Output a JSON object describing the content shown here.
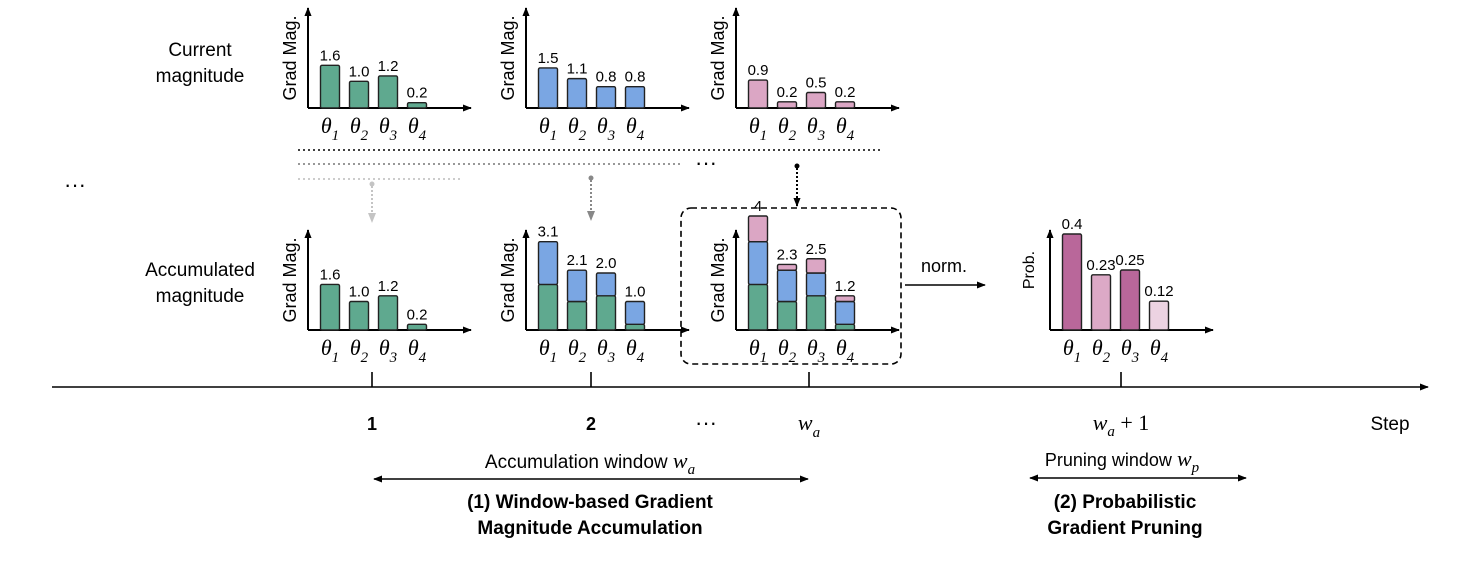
{
  "row_labels": {
    "current": [
      "Current",
      "magnitude"
    ],
    "accumulated": [
      "Accumulated",
      "magnitude"
    ]
  },
  "y_label": "Grad Mag.",
  "prob_label": "Prob.",
  "norm_label": "norm.",
  "ellipsis": "···",
  "timeline": {
    "axis_label": "Step",
    "ticks": [
      "1",
      "2",
      "···",
      "w_a",
      "w_a + 1"
    ]
  },
  "windows": {
    "accumulation": {
      "label": "Accumulation window",
      "symbol": "w_a",
      "caption": [
        "(1) Window-based Gradient",
        "Magnitude Accumulation"
      ]
    },
    "pruning": {
      "label": "Pruning window",
      "symbol": "w_p",
      "caption": [
        "(2) Probabilistic",
        "Gradient Pruning"
      ]
    }
  },
  "colors": {
    "green": "#5fa98f",
    "blue": "#7aa6e3",
    "pink": "#dba6c4",
    "prob_dark": "#b9679a",
    "prob_mid": "#dca9c6",
    "prob_light": "#ecd3e2"
  },
  "chart_data": [
    {
      "id": "current-step-1",
      "type": "bar",
      "categories": [
        "θ1",
        "θ2",
        "θ3",
        "θ4"
      ],
      "ylabel": "Grad Mag.",
      "series": [
        {
          "values": [
            1.6,
            1.0,
            1.2,
            0.2
          ]
        }
      ],
      "labels": [
        "1.6",
        "1.0",
        "1.2",
        "0.2"
      ]
    },
    {
      "id": "current-step-2",
      "type": "bar",
      "categories": [
        "θ1",
        "θ2",
        "θ3",
        "θ4"
      ],
      "ylabel": "Grad Mag.",
      "series": [
        {
          "values": [
            1.5,
            1.1,
            0.8,
            0.8
          ]
        }
      ],
      "labels": [
        "1.5",
        "1.1",
        "0.8",
        "0.8"
      ]
    },
    {
      "id": "current-step-wa",
      "type": "bar",
      "categories": [
        "θ1",
        "θ2",
        "θ3",
        "θ4"
      ],
      "ylabel": "Grad Mag.",
      "series": [
        {
          "values": [
            0.9,
            0.2,
            0.5,
            0.2
          ]
        }
      ],
      "labels": [
        "0.9",
        "0.2",
        "0.5",
        "0.2"
      ]
    },
    {
      "id": "accumulated-step-1",
      "type": "bar",
      "stacked": true,
      "categories": [
        "θ1",
        "θ2",
        "θ3",
        "θ4"
      ],
      "ylabel": "Grad Mag.",
      "series": [
        {
          "values": [
            1.6,
            1.0,
            1.2,
            0.2
          ]
        }
      ],
      "labels": [
        "1.6",
        "1.0",
        "1.2",
        "0.2"
      ]
    },
    {
      "id": "accumulated-step-2",
      "type": "bar",
      "stacked": true,
      "categories": [
        "θ1",
        "θ2",
        "θ3",
        "θ4"
      ],
      "ylabel": "Grad Mag.",
      "series": [
        {
          "values": [
            1.6,
            1.0,
            1.2,
            0.2
          ]
        },
        {
          "values": [
            1.5,
            1.1,
            0.8,
            0.8
          ]
        }
      ],
      "labels": [
        "3.1",
        "2.1",
        "2.0",
        "1.0"
      ]
    },
    {
      "id": "accumulated-step-wa",
      "type": "bar",
      "stacked": true,
      "categories": [
        "θ1",
        "θ2",
        "θ3",
        "θ4"
      ],
      "ylabel": "Grad Mag.",
      "series": [
        {
          "values": [
            1.6,
            1.0,
            1.2,
            0.2
          ]
        },
        {
          "values": [
            1.5,
            1.1,
            0.8,
            0.8
          ]
        },
        {
          "values": [
            0.9,
            0.2,
            0.5,
            0.2
          ]
        }
      ],
      "labels": [
        "4",
        "2.3",
        "2.5",
        "1.2"
      ]
    },
    {
      "id": "probability",
      "type": "bar",
      "categories": [
        "θ1",
        "θ2",
        "θ3",
        "θ4"
      ],
      "ylabel": "Prob.",
      "series": [
        {
          "values": [
            0.4,
            0.23,
            0.25,
            0.12
          ]
        }
      ],
      "labels": [
        "0.4",
        "0.23",
        "0.25",
        "0.12"
      ]
    }
  ]
}
